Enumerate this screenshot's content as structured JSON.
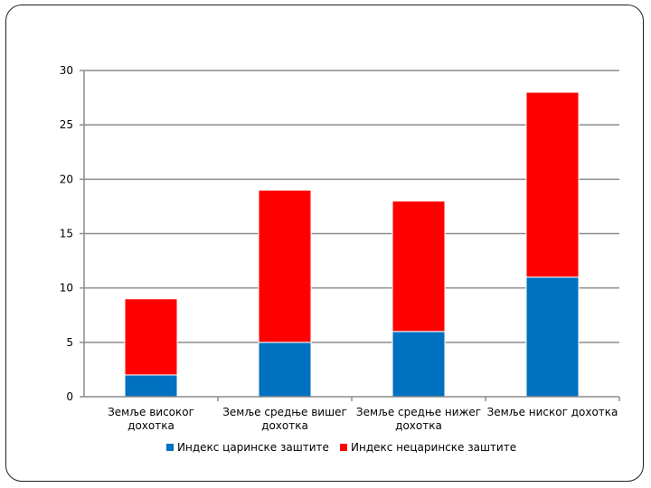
{
  "chart_data": {
    "type": "bar",
    "stacked": true,
    "categories": [
      [
        "Земље високог",
        "дохотка"
      ],
      [
        "Земље средње вишег",
        "дохотка"
      ],
      [
        "Земље средње нижег",
        "дохотка"
      ],
      [
        "Земље ниског дохотка"
      ]
    ],
    "series": [
      {
        "name": "Индекс царинске заштите",
        "color": "#0070c0",
        "values": [
          2,
          5,
          6,
          11
        ]
      },
      {
        "name": "Индекс нецаринске заштите",
        "color": "#ff0000",
        "values": [
          7,
          14,
          12,
          17
        ]
      }
    ],
    "ylim": [
      0,
      30
    ],
    "yticks": [
      0,
      5,
      10,
      15,
      20,
      25,
      30
    ],
    "grid": true,
    "legend": "bottom"
  }
}
